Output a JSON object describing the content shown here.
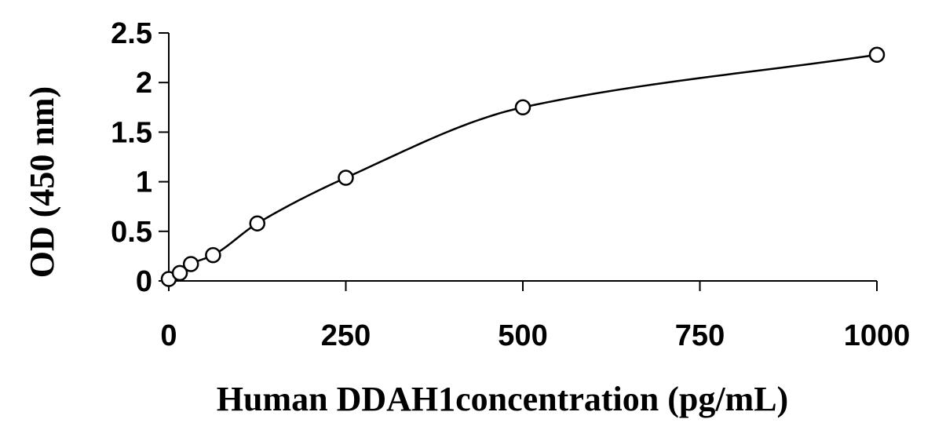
{
  "chart_data": {
    "type": "scatter",
    "title": "",
    "xlabel": "Human DDAH1concentration (pg/mL)",
    "ylabel": "OD (450 nm)",
    "xlim": [
      0,
      1000
    ],
    "ylim": [
      0,
      2.5
    ],
    "x_ticks": [
      0,
      250,
      500,
      750,
      1000
    ],
    "x_tick_labels": [
      "0",
      "250",
      "500",
      "750",
      "1000"
    ],
    "y_ticks": [
      0,
      0.5,
      1,
      1.5,
      2,
      2.5
    ],
    "y_tick_labels": [
      "0",
      "0.5",
      "1",
      "1.5",
      "2",
      "2.5"
    ],
    "grid": false,
    "legend": "none",
    "marker": "open-circle",
    "line": "smooth-fit",
    "series": [
      {
        "x": [
          0,
          15.6,
          31.25,
          62.5,
          125,
          250,
          500,
          1000
        ],
        "y": [
          0.02,
          0.08,
          0.17,
          0.26,
          0.58,
          1.04,
          1.75,
          2.28
        ]
      }
    ],
    "colors": {
      "marker_stroke": "#000000",
      "line": "#000000",
      "axis": "#000000"
    }
  }
}
